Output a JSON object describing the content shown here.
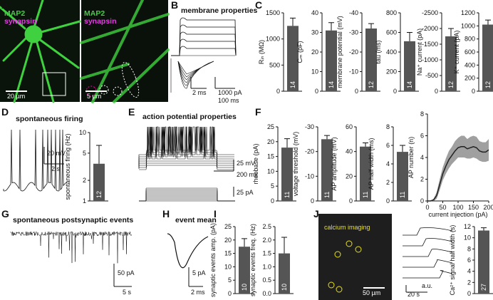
{
  "letters": [
    "A",
    "B",
    "C",
    "D",
    "E",
    "F",
    "G",
    "H",
    "I",
    "J"
  ],
  "image_labels": {
    "map2_left": "MAP2",
    "synapsin_left": "synapsin",
    "map2_right": "MAP2",
    "synapsin_right": "synapsin",
    "calcium": "calcium imaging"
  },
  "titles": {
    "B": "membrane properties",
    "D": "spontaneous firing",
    "E": "action potential properties",
    "G": "spontaneous postsynaptic events",
    "H": "event mean"
  },
  "scale_bars": {
    "A_left": "20 µm",
    "A_right": "5 µm",
    "B_time_fast": "2 ms",
    "B_current": "1000 pA",
    "B_time_slow": "100 ms",
    "D_voltage": "20 mV",
    "D_time": "2 s",
    "E_voltage": "25 mV",
    "E_time": "200 ms",
    "E_current": "25 pA",
    "G_current": "50 pA",
    "G_time": "5 s",
    "H_current": "5 pA",
    "H_time": "2 ms",
    "J_space": "50 µm",
    "J_time": "20 s",
    "J_signal": "a.u."
  },
  "chart_data": [
    {
      "type": "bar",
      "ylabel": "Rᵢₙ (MΩ)",
      "ylim": [
        0,
        1500
      ],
      "yticks": [
        0,
        500,
        1000,
        1500
      ],
      "values": [
        1250
      ],
      "errors": [
        150
      ],
      "n": 14
    },
    {
      "type": "bar",
      "ylabel": "Cₘ (pF)",
      "ylim": [
        0,
        40
      ],
      "yticks": [
        0,
        10,
        20,
        30,
        40
      ],
      "values": [
        31
      ],
      "errors": [
        4
      ],
      "n": 14
    },
    {
      "type": "bar",
      "ylabel": "membrane potential (mV)",
      "ylim": [
        0,
        -40
      ],
      "yticks": [
        0,
        -10,
        -20,
        -30,
        -40
      ],
      "values": [
        -32
      ],
      "errors": [
        2.5
      ],
      "n": 12
    },
    {
      "type": "bar",
      "ylabel": "tau (ms)",
      "ylim": [
        0,
        800
      ],
      "yticks": [
        0,
        200,
        400,
        600,
        800
      ],
      "values": [
        510
      ],
      "errors": [
        90
      ],
      "n": 14
    },
    {
      "type": "bar",
      "ylabel": "Na⁺ current (pA)",
      "ylim": [
        0,
        -2500
      ],
      "yticks": [
        0,
        -500,
        -1000,
        -1500,
        -2000,
        -2500
      ],
      "values": [
        -1750
      ],
      "errors": [
        250
      ],
      "n": 12
    },
    {
      "type": "bar",
      "ylabel": "K⁺ current (pA)",
      "ylim": [
        0,
        1200
      ],
      "yticks": [
        0,
        200,
        400,
        600,
        800,
        1000,
        1200
      ],
      "values": [
        1020
      ],
      "errors": [
        70
      ],
      "n": 12
    },
    {
      "type": "bar",
      "ylabel": "spontaneous firing (Hz)",
      "log": true,
      "ylim": [
        1,
        10
      ],
      "yticks": [
        1,
        2,
        5,
        10
      ],
      "values": [
        3.5
      ],
      "errors": [
        3
      ],
      "n": 12
    },
    {
      "type": "bar",
      "ylabel": "rheobase (pA)",
      "ylim": [
        0,
        25
      ],
      "yticks": [
        0,
        5,
        10,
        15,
        20,
        25
      ],
      "values": [
        18
      ],
      "errors": [
        3
      ],
      "n": 11
    },
    {
      "type": "bar",
      "ylabel": "voltage threshold (mV)",
      "ylim": [
        0,
        -30
      ],
      "yticks": [
        0,
        -10,
        -20,
        -30
      ],
      "values": [
        -25
      ],
      "errors": [
        1.5
      ],
      "n": 11
    },
    {
      "type": "bar",
      "ylabel": "AP amplitude (mV)",
      "ylim": [
        0,
        60
      ],
      "yticks": [
        0,
        20,
        40,
        60
      ],
      "values": [
        44
      ],
      "errors": [
        3
      ],
      "n": 11
    },
    {
      "type": "bar",
      "ylabel": "AP half width (ms)",
      "ylim": [
        0,
        8
      ],
      "yticks": [
        0,
        2,
        4,
        6,
        8
      ],
      "values": [
        5.3
      ],
      "errors": [
        0.7
      ],
      "n": 11
    },
    {
      "type": "line",
      "xlabel": "current injection (pA)",
      "ylabel": "AP number (n)",
      "xlim": [
        0,
        200
      ],
      "xticks": [
        0,
        50,
        100,
        150,
        200
      ],
      "ylim": [
        0,
        8
      ],
      "yticks": [
        0,
        2,
        4,
        6,
        8
      ],
      "x": [
        0,
        10,
        20,
        30,
        40,
        50,
        60,
        70,
        80,
        90,
        100,
        110,
        120,
        130,
        140,
        150,
        160,
        170,
        180,
        190,
        200
      ],
      "series": [
        {
          "color": "#222222",
          "band_color": "#888888",
          "values": [
            0,
            0,
            0.1,
            0.5,
            1.5,
            2.5,
            3.2,
            3.8,
            4.2,
            4.6,
            4.9,
            5.0,
            5.0,
            4.8,
            4.9,
            5.0,
            4.9,
            4.6,
            4.5,
            4.5,
            4.7
          ],
          "errors": [
            0,
            0,
            0.1,
            0.3,
            0.5,
            0.6,
            0.7,
            0.8,
            0.8,
            0.9,
            0.9,
            1.0,
            1.0,
            0.9,
            1.0,
            1.0,
            1.0,
            0.9,
            0.9,
            0.9,
            1.0
          ]
        }
      ]
    },
    {
      "type": "bar",
      "ylabel": "synaptic events amp. (pA)",
      "ylim": [
        0,
        25
      ],
      "yticks": [
        0,
        5,
        10,
        15,
        20,
        25
      ],
      "values": [
        17.5
      ],
      "errors": [
        3
      ],
      "n": 10
    },
    {
      "type": "bar",
      "ylabel": "synaptic events freq. (Hz)",
      "ylim": [
        0,
        2.5
      ],
      "yticks": [
        {
          "value": 0,
          "label": "0.0"
        },
        0.5,
        {
          "value": 1,
          "label": "1.0"
        },
        1.5,
        {
          "value": 2,
          "label": "2.0"
        },
        2.5
      ],
      "values": [
        1.5
      ],
      "errors": [
        0.6
      ],
      "n": 10
    },
    {
      "type": "bar",
      "ylabel": "Ca²⁺ signal half width (s)",
      "ylim": [
        0,
        12
      ],
      "yticks": [
        0,
        2,
        4,
        6,
        8,
        10,
        12
      ],
      "values": [
        11.3
      ],
      "errors": [
        0.5
      ],
      "n": 27
    }
  ]
}
